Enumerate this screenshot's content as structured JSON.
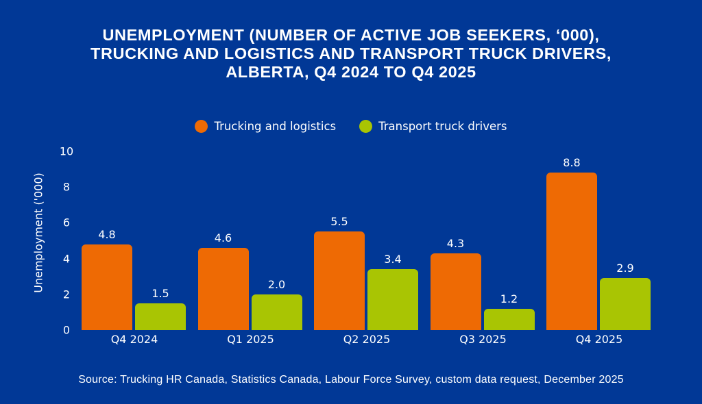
{
  "title": {
    "lines": [
      "UNEMPLOYMENT (NUMBER OF ACTIVE JOB SEEKERS, ‘000),",
      "TRUCKING AND LOGISTICS AND TRANSPORT TRUCK DRIVERS,",
      "ALBERTA, Q4 2024 TO Q4 2025"
    ]
  },
  "legend": [
    {
      "label": "Trucking and logistics",
      "color": "#ee6a04"
    },
    {
      "label": "Transport truck drivers",
      "color": "#a9c503"
    }
  ],
  "colors": {
    "background": "#013896",
    "text": "#ffffff"
  },
  "source": "Source: Trucking HR Canada, Statistics Canada, Labour Force Survey, custom data request, December 2025",
  "chart_data": {
    "type": "bar",
    "title": "Unemployment (number of active job seekers, ‘000), Trucking and logistics and Transport truck drivers, Alberta, Q4 2024 to Q4 2025",
    "xlabel": "",
    "ylabel": "Unemployment ('000)",
    "ylim": [
      0,
      10
    ],
    "yticks": [
      0,
      2,
      4,
      6,
      8,
      10
    ],
    "grid": false,
    "legend_position": "top",
    "categories": [
      "Q4 2024",
      "Q1 2025",
      "Q2 2025",
      "Q3 2025",
      "Q4 2025"
    ],
    "series": [
      {
        "name": "Trucking and logistics",
        "color": "#ee6a04",
        "values": [
          4.8,
          4.6,
          5.5,
          4.3,
          8.8
        ],
        "labels": [
          "4.8",
          "4.6",
          "5.5",
          "4.3",
          "8.8"
        ]
      },
      {
        "name": "Transport truck drivers",
        "color": "#a9c503",
        "values": [
          1.5,
          2.0,
          3.4,
          1.2,
          2.9
        ],
        "labels": [
          "1.5",
          "2.0",
          "3.4",
          "1.2",
          "2.9"
        ]
      }
    ],
    "source": "Trucking HR Canada, Statistics Canada, Labour Force Survey, custom data request, December 2025"
  }
}
